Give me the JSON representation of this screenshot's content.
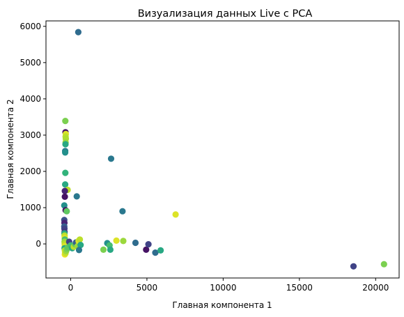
{
  "chart_data": {
    "type": "scatter",
    "title": "Визуализация данных Live с PCA",
    "xlabel": "Главная компонента 1",
    "ylabel": "Главная компонента 2",
    "xlim": [
      -1620,
      21540
    ],
    "ylim": [
      -940,
      6150
    ],
    "xticks": [
      0,
      5000,
      10000,
      15000,
      20000
    ],
    "yticks": [
      0,
      1000,
      2000,
      3000,
      4000,
      5000,
      6000
    ],
    "grid": false,
    "colormap": "viridis",
    "points": [
      {
        "x": 500,
        "y": 5840,
        "c": 0.35
      },
      {
        "x": -350,
        "y": 3390,
        "c": 0.8
      },
      {
        "x": -340,
        "y": 3080,
        "c": 0.05
      },
      {
        "x": -320,
        "y": 3030,
        "c": 0.95
      },
      {
        "x": -330,
        "y": 2960,
        "c": 0.9
      },
      {
        "x": -320,
        "y": 2900,
        "c": 0.88
      },
      {
        "x": -330,
        "y": 2800,
        "c": 0.85
      },
      {
        "x": -340,
        "y": 2750,
        "c": 0.6
      },
      {
        "x": -360,
        "y": 2560,
        "c": 0.4
      },
      {
        "x": -360,
        "y": 2520,
        "c": 0.5
      },
      {
        "x": -350,
        "y": 1960,
        "c": 0.65
      },
      {
        "x": 2650,
        "y": 2350,
        "c": 0.4
      },
      {
        "x": -360,
        "y": 1640,
        "c": 0.6
      },
      {
        "x": -200,
        "y": 1490,
        "c": 0.9
      },
      {
        "x": -380,
        "y": 1460,
        "c": 0.1
      },
      {
        "x": -380,
        "y": 1300,
        "c": 0.05
      },
      {
        "x": 400,
        "y": 1310,
        "c": 0.4
      },
      {
        "x": -420,
        "y": 1060,
        "c": 0.5
      },
      {
        "x": -330,
        "y": 930,
        "c": 0.05
      },
      {
        "x": -260,
        "y": 900,
        "c": 0.75
      },
      {
        "x": 3400,
        "y": 900,
        "c": 0.4
      },
      {
        "x": 6880,
        "y": 810,
        "c": 0.95
      },
      {
        "x": -420,
        "y": 660,
        "c": 0.25
      },
      {
        "x": -410,
        "y": 580,
        "c": 0.1
      },
      {
        "x": -420,
        "y": 480,
        "c": 0.3
      },
      {
        "x": -410,
        "y": 420,
        "c": 0.2
      },
      {
        "x": -400,
        "y": 330,
        "c": 0.15
      },
      {
        "x": -410,
        "y": 290,
        "c": 0.6
      },
      {
        "x": -400,
        "y": 230,
        "c": 0.9
      },
      {
        "x": -390,
        "y": 170,
        "c": 0.95
      },
      {
        "x": -380,
        "y": 120,
        "c": 0.7
      },
      {
        "x": -400,
        "y": 60,
        "c": 0.85
      },
      {
        "x": -390,
        "y": 0,
        "c": 0.9
      },
      {
        "x": -380,
        "y": -60,
        "c": 0.95
      },
      {
        "x": -400,
        "y": -120,
        "c": 0.6
      },
      {
        "x": -380,
        "y": -180,
        "c": 0.9
      },
      {
        "x": -370,
        "y": -230,
        "c": 0.95
      },
      {
        "x": -380,
        "y": -290,
        "c": 0.98
      },
      {
        "x": -340,
        "y": -260,
        "c": 0.92
      },
      {
        "x": -300,
        "y": -200,
        "c": 0.85
      },
      {
        "x": -250,
        "y": -150,
        "c": 0.8
      },
      {
        "x": -200,
        "y": -100,
        "c": 0.75
      },
      {
        "x": -100,
        "y": 60,
        "c": 0.2
      },
      {
        "x": 0,
        "y": -40,
        "c": 0.7
      },
      {
        "x": 100,
        "y": -120,
        "c": 0.6
      },
      {
        "x": 200,
        "y": -80,
        "c": 0.9
      },
      {
        "x": 300,
        "y": -10,
        "c": 0.75
      },
      {
        "x": 350,
        "y": 40,
        "c": 0.3
      },
      {
        "x": 450,
        "y": -60,
        "c": 0.85
      },
      {
        "x": 520,
        "y": 80,
        "c": 0.95
      },
      {
        "x": 600,
        "y": 120,
        "c": 0.9
      },
      {
        "x": 650,
        "y": -30,
        "c": 0.6
      },
      {
        "x": 550,
        "y": -170,
        "c": 0.4
      },
      {
        "x": 2150,
        "y": -160,
        "c": 0.8
      },
      {
        "x": 2400,
        "y": 20,
        "c": 0.5
      },
      {
        "x": 2550,
        "y": -40,
        "c": 0.7
      },
      {
        "x": 2600,
        "y": -160,
        "c": 0.6
      },
      {
        "x": 3000,
        "y": 90,
        "c": 0.95
      },
      {
        "x": 3450,
        "y": 80,
        "c": 0.85
      },
      {
        "x": 4250,
        "y": 30,
        "c": 0.35
      },
      {
        "x": 4950,
        "y": -160,
        "c": 0.05
      },
      {
        "x": 5100,
        "y": -10,
        "c": 0.2
      },
      {
        "x": 5550,
        "y": -240,
        "c": 0.35
      },
      {
        "x": 5900,
        "y": -180,
        "c": 0.6
      },
      {
        "x": 18550,
        "y": -620,
        "c": 0.2
      },
      {
        "x": 20550,
        "y": -560,
        "c": 0.8
      }
    ]
  }
}
